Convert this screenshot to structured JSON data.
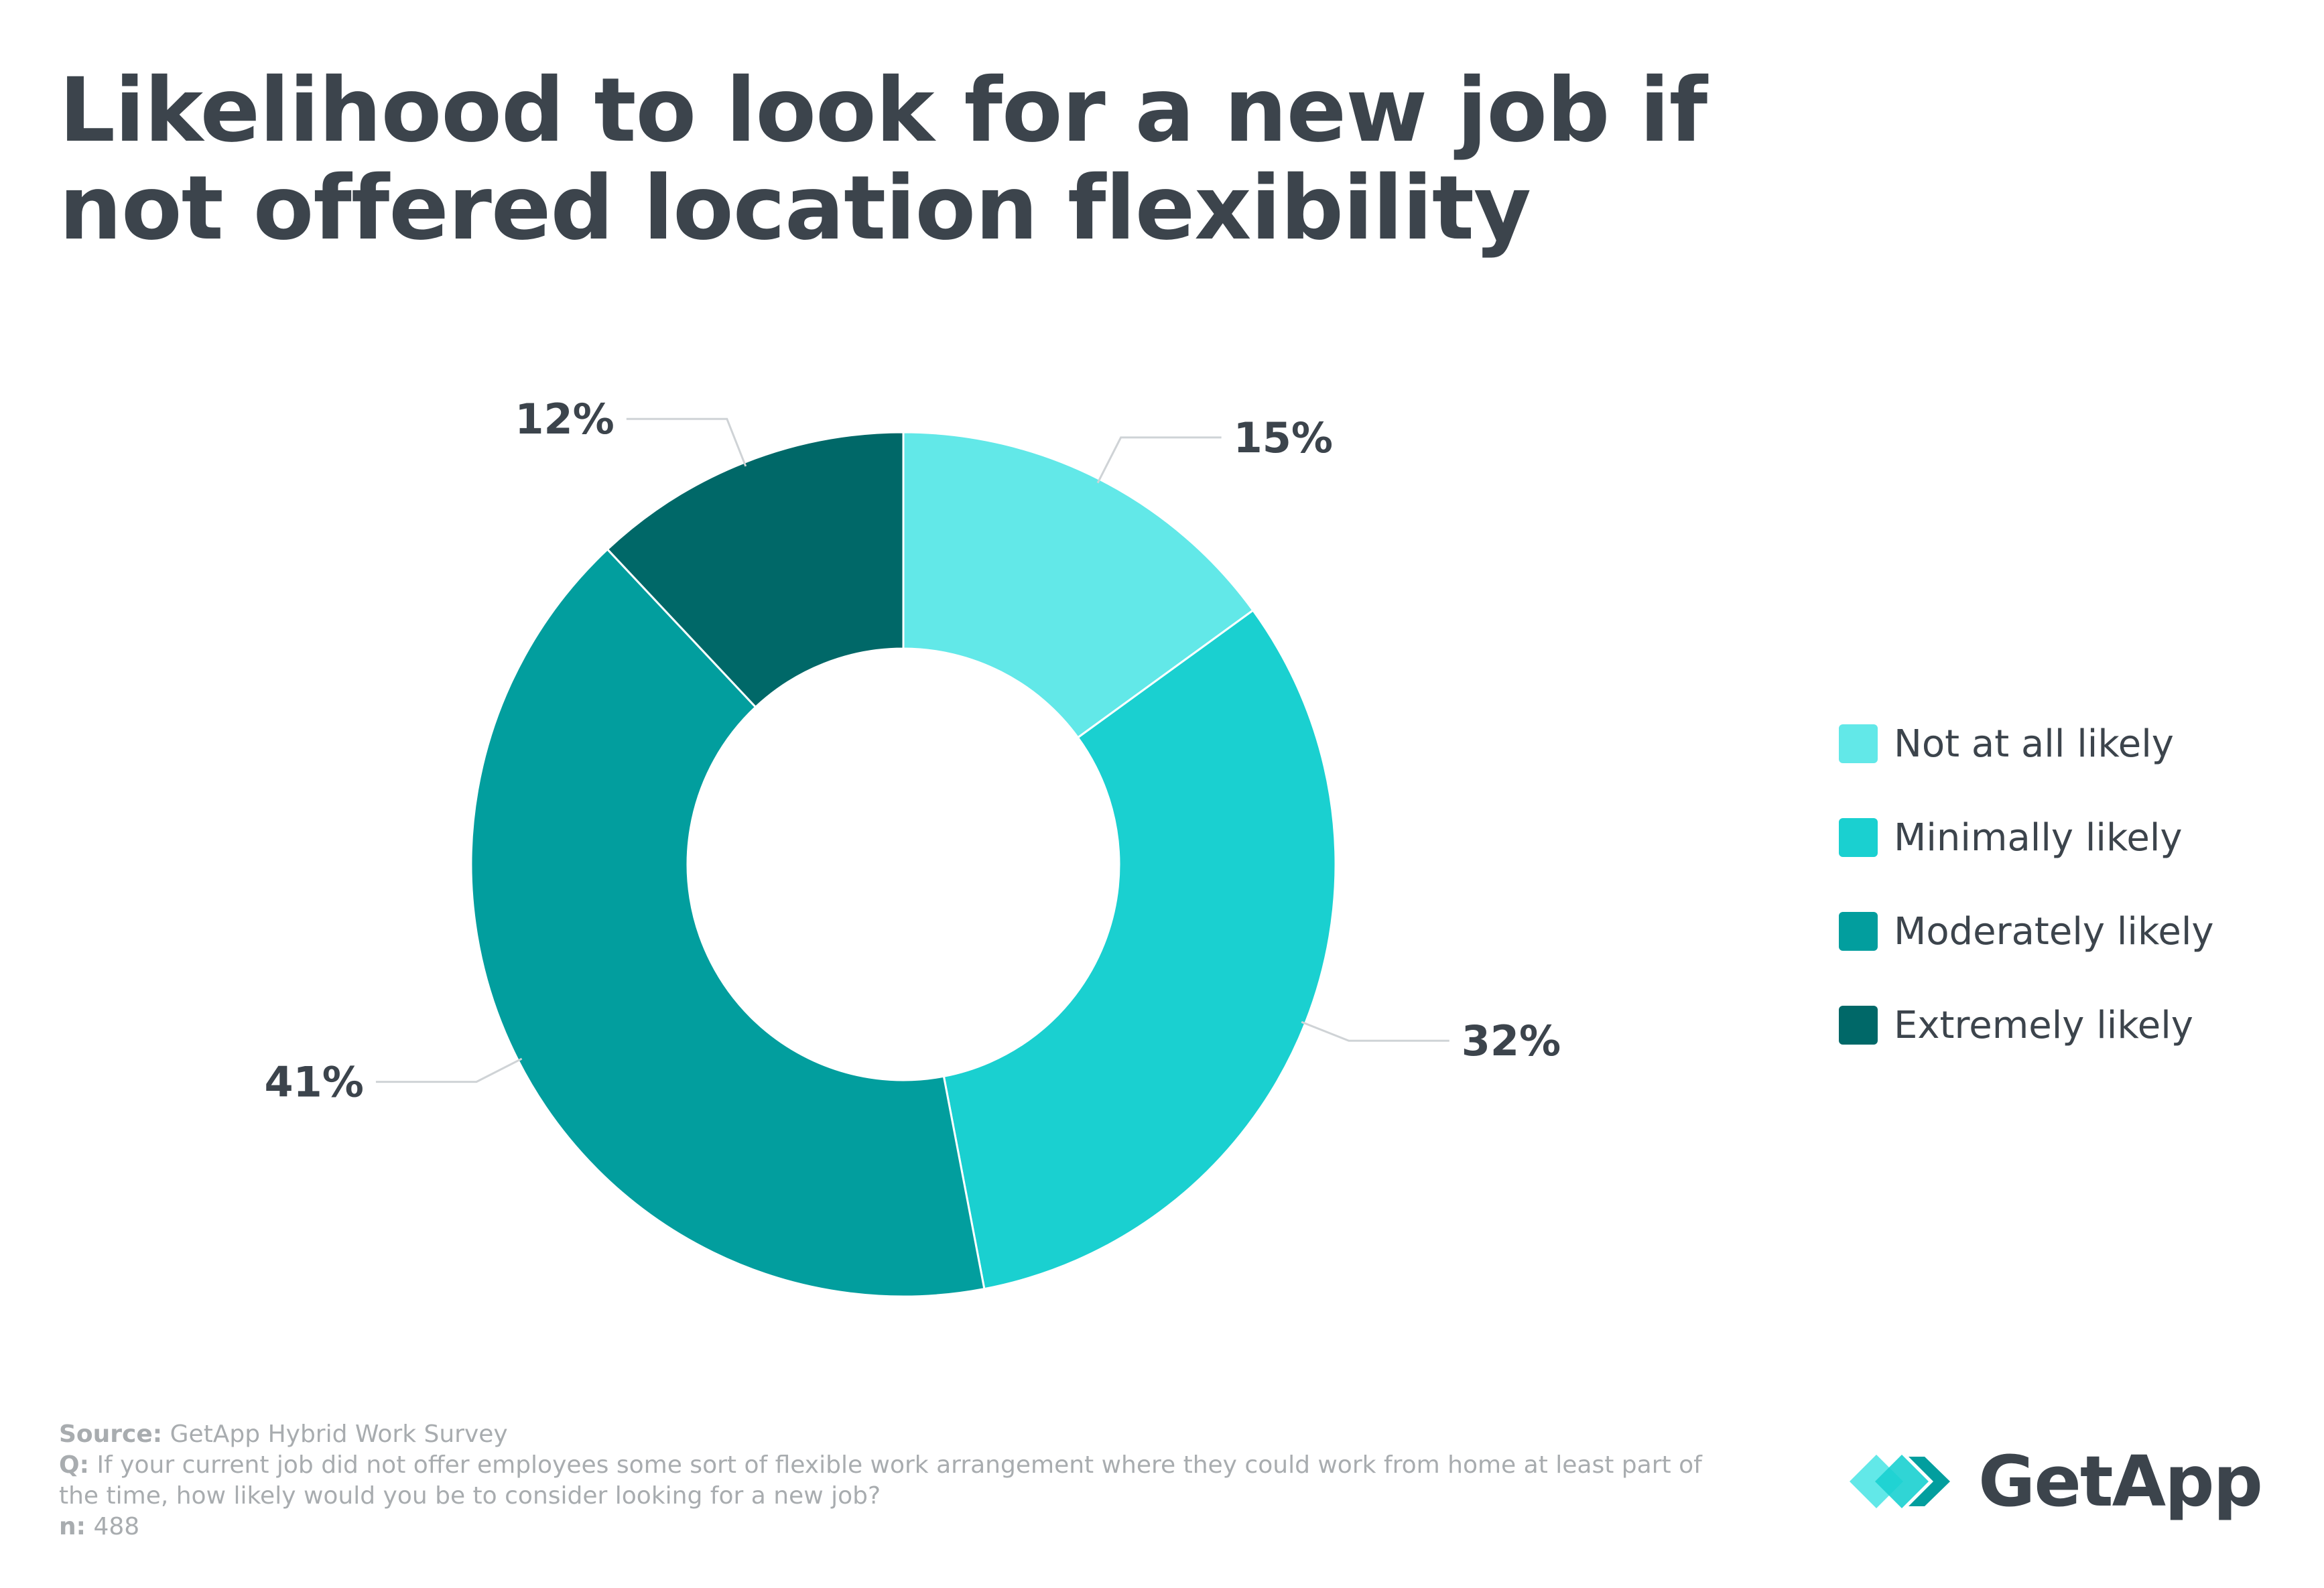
{
  "title": "Likelihood to look for a new job if not offered location flexibility",
  "chart_data": {
    "type": "pie",
    "donut": true,
    "title": "Likelihood to look for a new job if not offered location flexibility",
    "categories": [
      "Not at all likely",
      "Minimally likely",
      "Moderately likely",
      "Extremely likely"
    ],
    "values": [
      15,
      32,
      41,
      12
    ],
    "value_labels": [
      "15%",
      "32%",
      "41%",
      "12%"
    ],
    "colors": [
      "#62e8e8",
      "#1ad0d0",
      "#029e9e",
      "#006868"
    ],
    "legend_position": "right"
  },
  "footer": {
    "source_key": "Source:",
    "source_text": " GetApp Hybrid Work Survey",
    "q_key": "Q:",
    "q_text": " If your current job did not offer employees some sort of flexible work arrangement where they could work from home at least part of the time, how likely would you be to consider looking for a new job?",
    "n_key": "n:",
    "n_text": " 488"
  },
  "logo": {
    "text": "GetApp",
    "colors": [
      "#62e8e8",
      "#1ad0d0",
      "#029e9e"
    ]
  }
}
